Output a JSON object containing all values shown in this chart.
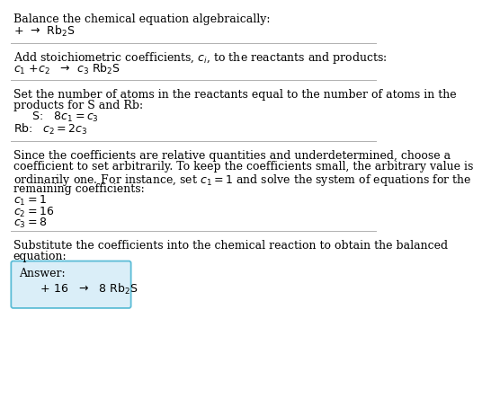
{
  "title": "Balance the chemical equation algebraically:",
  "line1": "+  →  Rb$_2$S",
  "section2_title": "Add stoichiometric coefficients, $c_i$, to the reactants and products:",
  "section2_line": "$c_1$ +$c_2$   →  $c_3$ Rb$_2$S",
  "section3_title": "Set the number of atoms in the reactants equal to the number of atoms in the",
  "section3_title2": "products for S and Rb:",
  "section3_S": "   S:   $8 c_1 = c_3$",
  "section3_Rb": "Rb:   $c_2 = 2 c_3$",
  "section4_intro1": "Since the coefficients are relative quantities and underdetermined, choose a",
  "section4_intro2": "coefficient to set arbitrarily. To keep the coefficients small, the arbitrary value is",
  "section4_intro3": "ordinarily one. For instance, set $c_1 = 1$ and solve the system of equations for the",
  "section4_intro4": "remaining coefficients:",
  "section4_c1": "$c_1 = 1$",
  "section4_c2": "$c_2 = 16$",
  "section4_c3": "$c_3 = 8$",
  "section5_title": "Substitute the coefficients into the chemical reaction to obtain the balanced",
  "section5_title2": "equation:",
  "answer_label": "Answer:",
  "answer_eq": "      + 16   →   8 Rb$_2$S",
  "bg_color": "#ffffff",
  "text_color": "#000000",
  "answer_box_facecolor": "#daeef8",
  "answer_box_edgecolor": "#5bbcd6",
  "divider_color": "#b0b0b0",
  "fs_body": 9.0,
  "fs_math": 9.0
}
